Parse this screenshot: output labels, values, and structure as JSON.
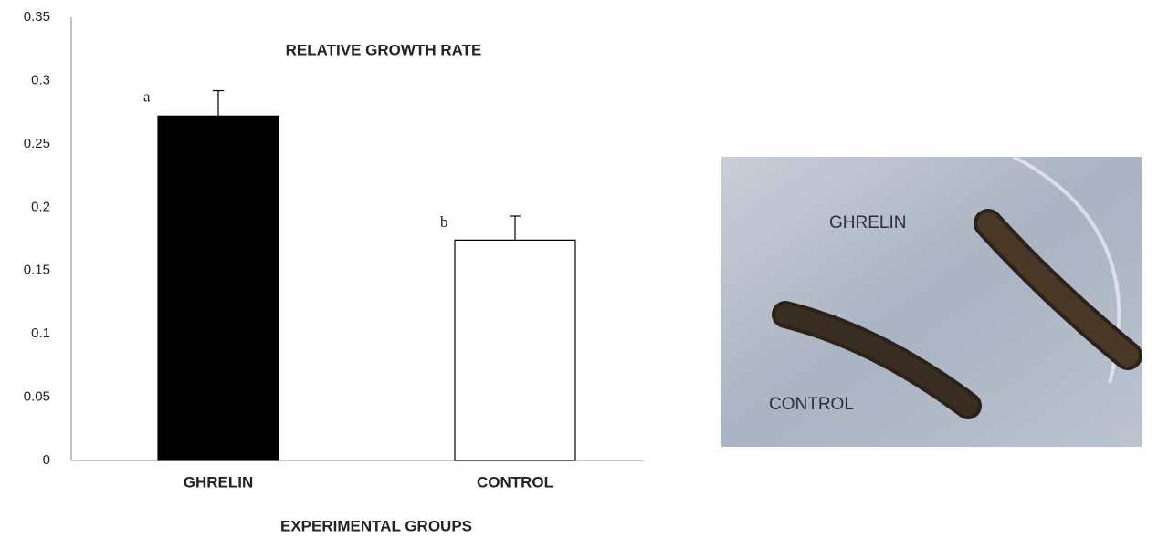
{
  "chart_data": {
    "type": "bar",
    "title": "RELATIVE   GROWTH RATE",
    "x_label": "EXPERIMENTAL   GROUPS",
    "categories": [
      "GHRELIN",
      "CONTROL"
    ],
    "values": [
      0.272,
      0.174
    ],
    "errors": [
      0.02,
      0.019
    ],
    "annotations": [
      "a",
      "b"
    ],
    "colors": [
      "#000000",
      "#ffffff"
    ],
    "ylim": [
      0,
      0.35
    ],
    "yticks": [
      0,
      0.05,
      0.1,
      0.15,
      0.2,
      0.25,
      0.3,
      0.35
    ],
    "grid": false
  },
  "photo": {
    "labels": [
      "GHRELIN",
      "CONTROL"
    ]
  }
}
